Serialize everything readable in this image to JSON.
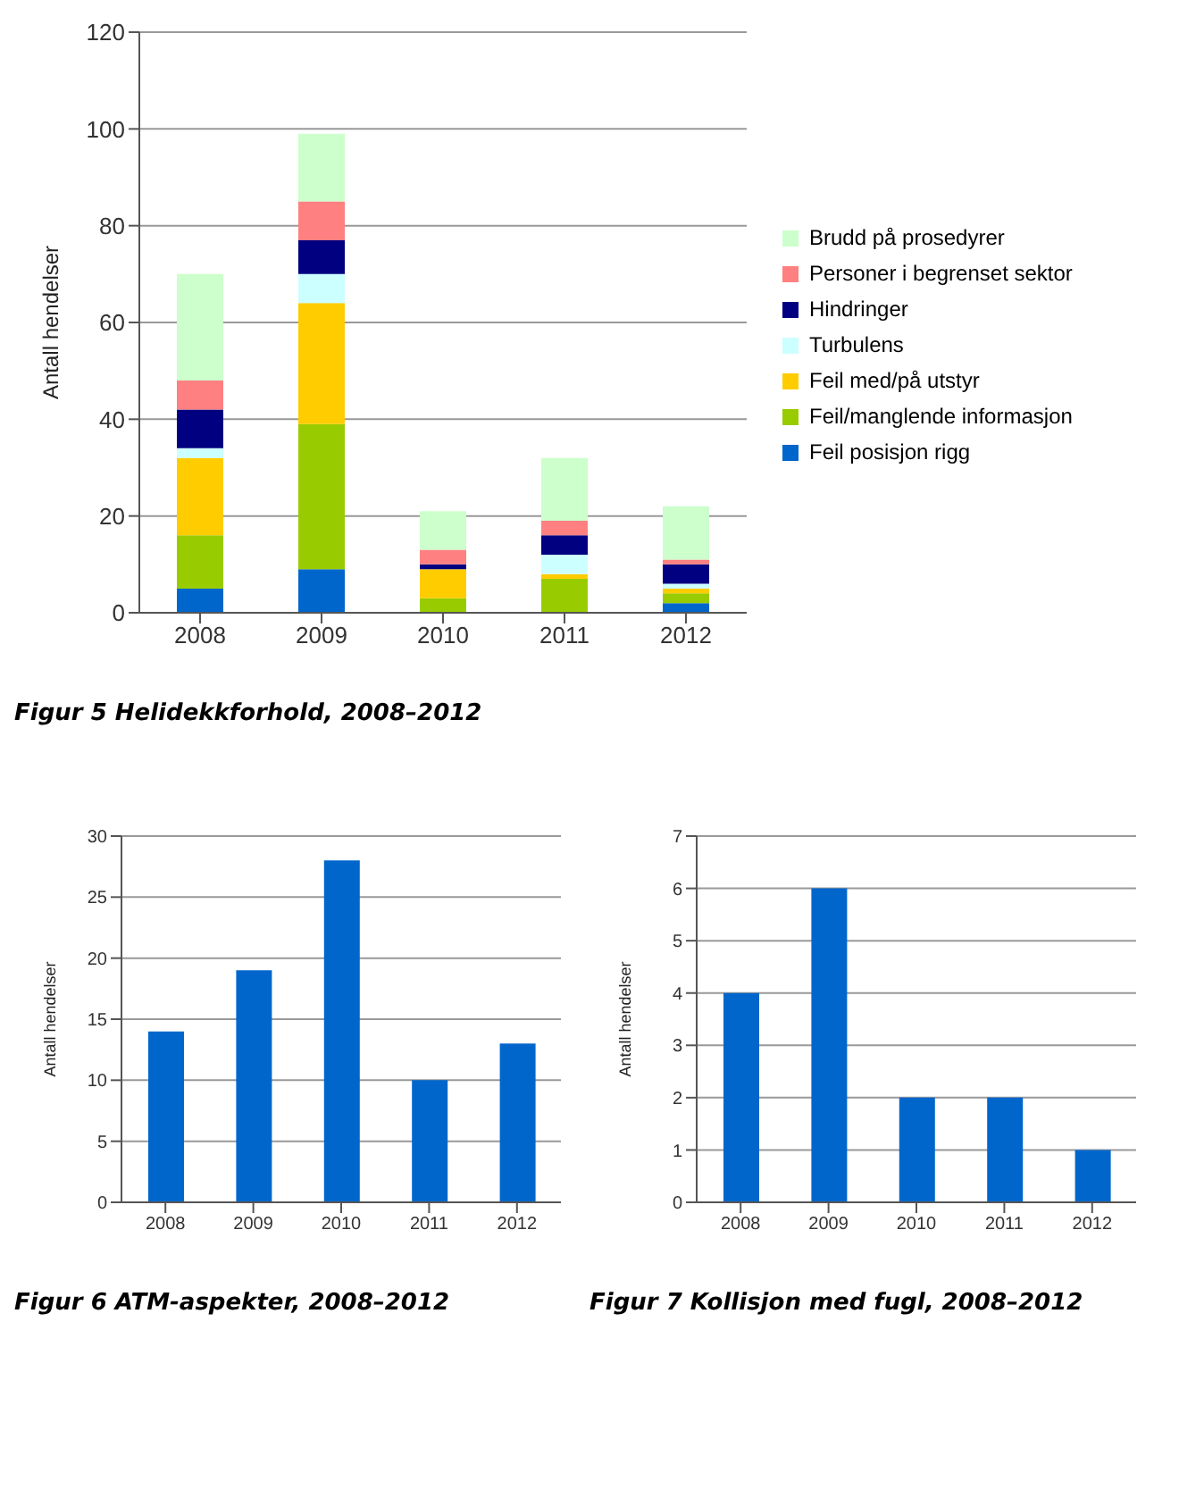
{
  "chart_data": [
    {
      "type": "bar",
      "title": "Figur 5 Helidekkforhold, 2008–2012",
      "ylabel": "Antall hendelser",
      "categories": [
        "2008",
        "2009",
        "2010",
        "2011",
        "2012"
      ],
      "stacked": true,
      "series": [
        {
          "name": "Feil posisjon rigg",
          "color": "#0066cc",
          "values": [
            5,
            9,
            0,
            0,
            2
          ]
        },
        {
          "name": "Feil/manglende informasjon",
          "color": "#99cc00",
          "values": [
            11,
            30,
            3,
            7,
            2
          ]
        },
        {
          "name": "Feil med/på utstyr",
          "color": "#ffcc00",
          "values": [
            16,
            25,
            6,
            1,
            1
          ]
        },
        {
          "name": "Turbulens",
          "color": "#ccffff",
          "values": [
            2,
            6,
            0,
            4,
            1
          ]
        },
        {
          "name": "Hindringer",
          "color": "#000080",
          "values": [
            8,
            7,
            1,
            4,
            4
          ]
        },
        {
          "name": "Personer i begrenset sektor",
          "color": "#ff8080",
          "values": [
            6,
            8,
            3,
            3,
            1
          ]
        },
        {
          "name": "Brudd på prosedyrer",
          "color": "#ccffcc",
          "values": [
            22,
            14,
            8,
            13,
            11
          ]
        }
      ],
      "ylim": [
        0,
        120
      ],
      "yticks": [
        0,
        20,
        40,
        60,
        80,
        100,
        120
      ],
      "grid": "y",
      "legend": "right"
    },
    {
      "type": "bar",
      "title": "Figur 6 ATM-aspekter, 2008–2012",
      "ylabel": "Antall hendelser",
      "categories": [
        "2008",
        "2009",
        "2010",
        "2011",
        "2012"
      ],
      "series": [
        {
          "color": "#0066cc",
          "values": [
            14,
            19,
            28,
            10,
            13
          ]
        }
      ],
      "ylim": [
        0,
        30
      ],
      "yticks": [
        0,
        5,
        10,
        15,
        20,
        25,
        30
      ],
      "grid": "y"
    },
    {
      "type": "bar",
      "title": "Figur 7 Kollisjon med fugl, 2008–2012",
      "ylabel": "Antall hendelser",
      "categories": [
        "2008",
        "2009",
        "2010",
        "2011",
        "2012"
      ],
      "series": [
        {
          "color": "#0066cc",
          "values": [
            4,
            6,
            2,
            2,
            1
          ]
        }
      ],
      "ylim": [
        0,
        7
      ],
      "yticks": [
        0,
        1,
        2,
        3,
        4,
        5,
        6,
        7
      ],
      "grid": "y"
    }
  ]
}
